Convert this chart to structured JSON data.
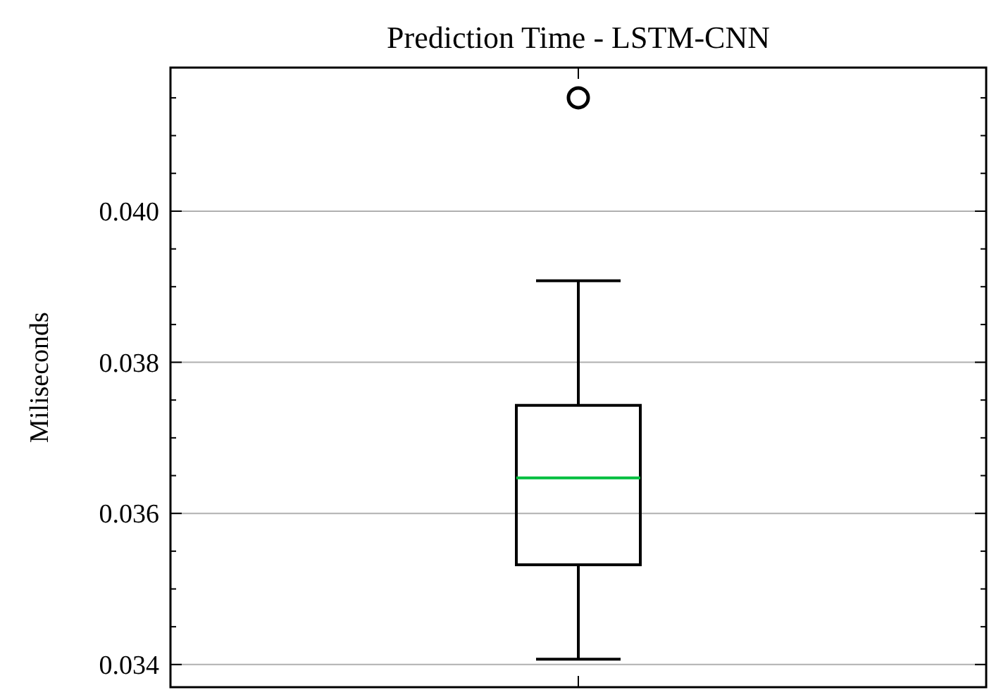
{
  "chart_data": {
    "type": "box",
    "title": "Prediction Time - LSTM-CNN",
    "ylabel": "Miliseconds",
    "categories": [
      null
    ],
    "boxes": [
      {
        "low": 0.03407,
        "q1": 0.03532,
        "median": 0.03647,
        "q3": 0.03743,
        "high": 0.03908,
        "outliers": [
          0.0415
        ]
      }
    ],
    "color": "#000000",
    "ylim": [
      0.0337,
      0.0419
    ],
    "yticks": [
      {
        "value": 0.034,
        "label": "0.034"
      },
      {
        "value": 0.0345,
        "label": null
      },
      {
        "value": 0.035,
        "label": null
      },
      {
        "value": 0.0355,
        "label": null
      },
      {
        "value": 0.036,
        "label": "0.036"
      },
      {
        "value": 0.0365,
        "label": null
      },
      {
        "value": 0.037,
        "label": null
      },
      {
        "value": 0.0375,
        "label": null
      },
      {
        "value": 0.038,
        "label": "0.038"
      },
      {
        "value": 0.0385,
        "label": null
      },
      {
        "value": 0.039,
        "label": null
      },
      {
        "value": 0.0395,
        "label": null
      },
      {
        "value": 0.04,
        "label": "0.040"
      },
      {
        "value": 0.0405,
        "label": null
      },
      {
        "value": 0.041,
        "label": null
      },
      {
        "value": 0.0415,
        "label": null
      }
    ],
    "grid": "y"
  }
}
